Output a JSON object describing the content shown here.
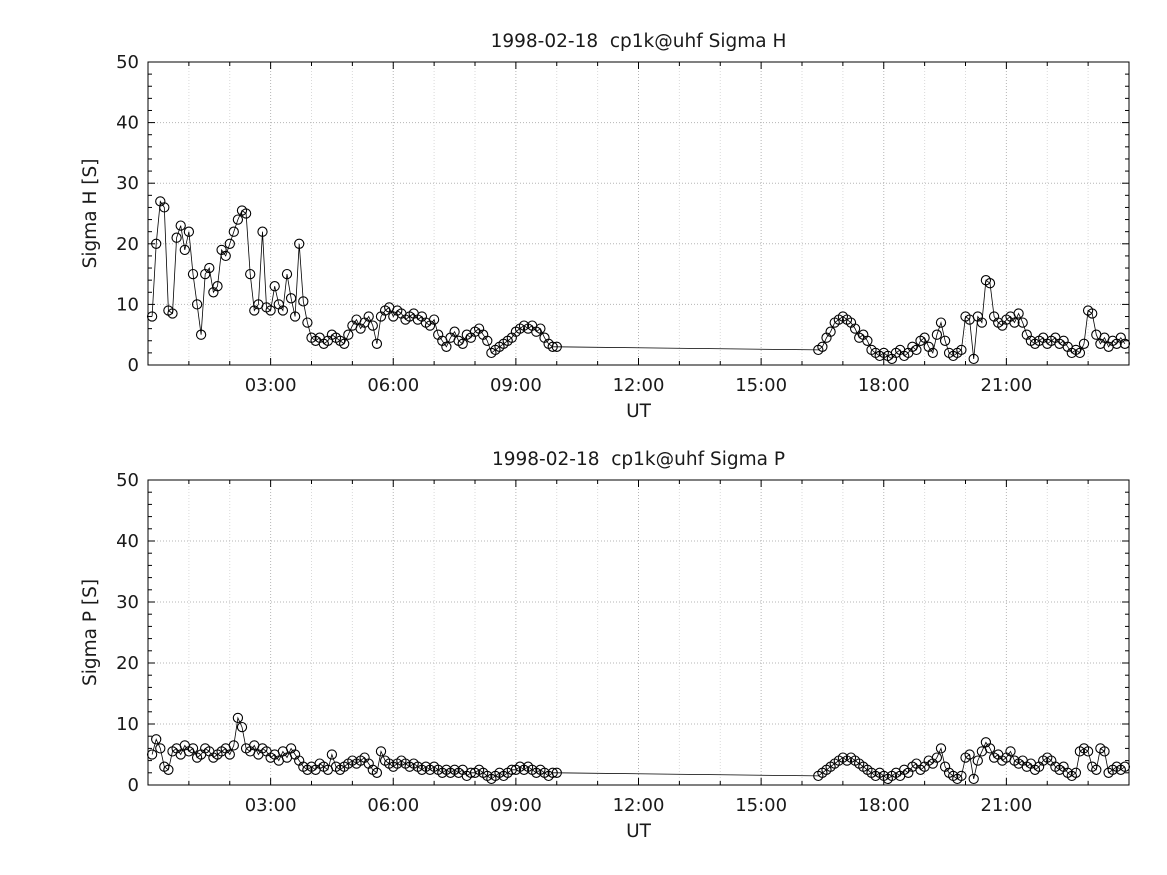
{
  "figure": {
    "background": "#ffffff"
  },
  "chart_data": [
    {
      "type": "line",
      "name": "sigma-h",
      "title": "1998-02-18  cp1k@uhf Sigma H",
      "xlabel": "UT",
      "ylabel": "Sigma H [S]",
      "xlim": [
        0,
        24
      ],
      "ylim": [
        0,
        50
      ],
      "xticks": [
        3,
        6,
        9,
        12,
        15,
        18,
        21
      ],
      "xtick_labels": [
        "03:00",
        "06:00",
        "09:00",
        "12:00",
        "15:00",
        "18:00",
        "21:00"
      ],
      "yticks": [
        0,
        10,
        20,
        30,
        40,
        50
      ],
      "grid": true,
      "marker": "open-circle",
      "line_color": "#000000",
      "segments": [
        {
          "t0": 0.1,
          "dt": 0.1,
          "values": [
            8,
            20,
            27,
            26,
            9,
            8.5,
            21,
            23,
            19,
            22,
            15,
            10,
            5,
            15,
            16,
            12,
            13,
            19,
            18,
            20,
            22,
            24,
            25.5,
            25,
            15,
            9,
            10,
            22,
            9.5,
            9,
            13,
            10,
            9,
            15,
            11,
            8,
            20,
            10.5,
            7,
            4.5,
            4,
            4.5,
            3.5,
            4,
            5,
            4.5,
            4,
            3.5,
            5,
            6.5,
            7.5,
            6,
            7,
            8,
            6.5,
            3.5,
            8,
            9,
            9.5,
            8,
            9,
            8.5,
            7.5,
            8,
            8.5,
            7.5,
            8,
            7,
            6.5,
            7.5,
            5,
            4,
            3,
            4.5,
            5.5,
            4,
            3.5,
            5,
            4.5,
            5.5,
            6,
            5,
            4,
            2,
            2.5,
            3,
            3.5,
            4,
            4.5,
            5.5,
            6,
            6.5,
            6,
            6.5,
            5.5,
            6,
            4.5,
            3.5,
            3,
            3
          ]
        },
        {
          "t0": 16.4,
          "dt": 0.1,
          "values": [
            2.5,
            3,
            4.5,
            5.5,
            7,
            7.5,
            8,
            7.5,
            7,
            6,
            4.5,
            5,
            4,
            2.5,
            2,
            1.5,
            2,
            1.5,
            1,
            2,
            2.5,
            1.5,
            2,
            3,
            2.5,
            4,
            4.5,
            3,
            2,
            5,
            7,
            4,
            2,
            1.5,
            2,
            2.5,
            8,
            7.5,
            1,
            8,
            7,
            14,
            13.5,
            8,
            7,
            6.5,
            7.5,
            8,
            7,
            8.5,
            7,
            5,
            4,
            3.5,
            4,
            4.5,
            3.5,
            4,
            4.5,
            3.5,
            4,
            3,
            2,
            2.5,
            2,
            3.5,
            9,
            8.5,
            5,
            3.5,
            4.5,
            3,
            4,
            3.5,
            4.5,
            3.5
          ]
        }
      ]
    },
    {
      "type": "line",
      "name": "sigma-p",
      "title": "1998-02-18  cp1k@uhf Sigma P",
      "xlabel": "UT",
      "ylabel": "Sigma P [S]",
      "xlim": [
        0,
        24
      ],
      "ylim": [
        0,
        50
      ],
      "xticks": [
        3,
        6,
        9,
        12,
        15,
        18,
        21
      ],
      "xtick_labels": [
        "03:00",
        "06:00",
        "09:00",
        "12:00",
        "15:00",
        "18:00",
        "21:00"
      ],
      "yticks": [
        0,
        10,
        20,
        30,
        40,
        50
      ],
      "grid": true,
      "marker": "open-circle",
      "line_color": "#000000",
      "segments": [
        {
          "t0": 0.1,
          "dt": 0.1,
          "values": [
            5,
            7.5,
            6,
            3,
            2.5,
            5.5,
            6,
            5,
            6.5,
            5.5,
            6,
            4.5,
            5,
            6,
            5.5,
            4.5,
            5,
            5.5,
            6,
            5,
            6.5,
            11,
            9.5,
            6,
            5.5,
            6.5,
            5,
            6,
            5.5,
            4.5,
            5,
            4,
            5.5,
            4.5,
            6,
            5,
            4,
            3,
            2.5,
            3,
            2.5,
            3.5,
            3,
            2.5,
            5,
            3,
            2.5,
            3,
            3.5,
            4,
            3.5,
            4,
            4.5,
            3.5,
            2.5,
            2,
            5.5,
            4,
            3.5,
            3,
            3.5,
            4,
            3.5,
            3,
            3.5,
            3,
            2.5,
            3,
            2.5,
            3,
            2.5,
            2,
            2.5,
            2,
            2.5,
            2,
            2.5,
            1.5,
            2,
            2,
            2.5,
            2,
            1.5,
            1,
            1.5,
            2,
            1.5,
            2,
            2.5,
            2.5,
            3,
            2.5,
            3,
            2.5,
            2,
            2.5,
            2,
            1.5,
            2,
            2
          ]
        },
        {
          "t0": 16.4,
          "dt": 0.1,
          "values": [
            1.5,
            2,
            2.5,
            3,
            3.5,
            4,
            4.5,
            4,
            4.5,
            4,
            3.5,
            3,
            2.5,
            2,
            1.5,
            2,
            1.5,
            1,
            1.5,
            2,
            1.5,
            2.5,
            2,
            3,
            3.5,
            2.5,
            3,
            4,
            3.5,
            4.5,
            6,
            3,
            2,
            1.5,
            1,
            1.5,
            4.5,
            5,
            1,
            4,
            5.5,
            7,
            6,
            4.5,
            5,
            4,
            4.5,
            5.5,
            4,
            3.5,
            4,
            3,
            3.5,
            2.5,
            3,
            4,
            4.5,
            4,
            3,
            2.5,
            3,
            2,
            1.5,
            2,
            5.5,
            6,
            5.5,
            3,
            2.5,
            6,
            5.5,
            2,
            2.5,
            3,
            2.5,
            3
          ]
        }
      ]
    }
  ]
}
